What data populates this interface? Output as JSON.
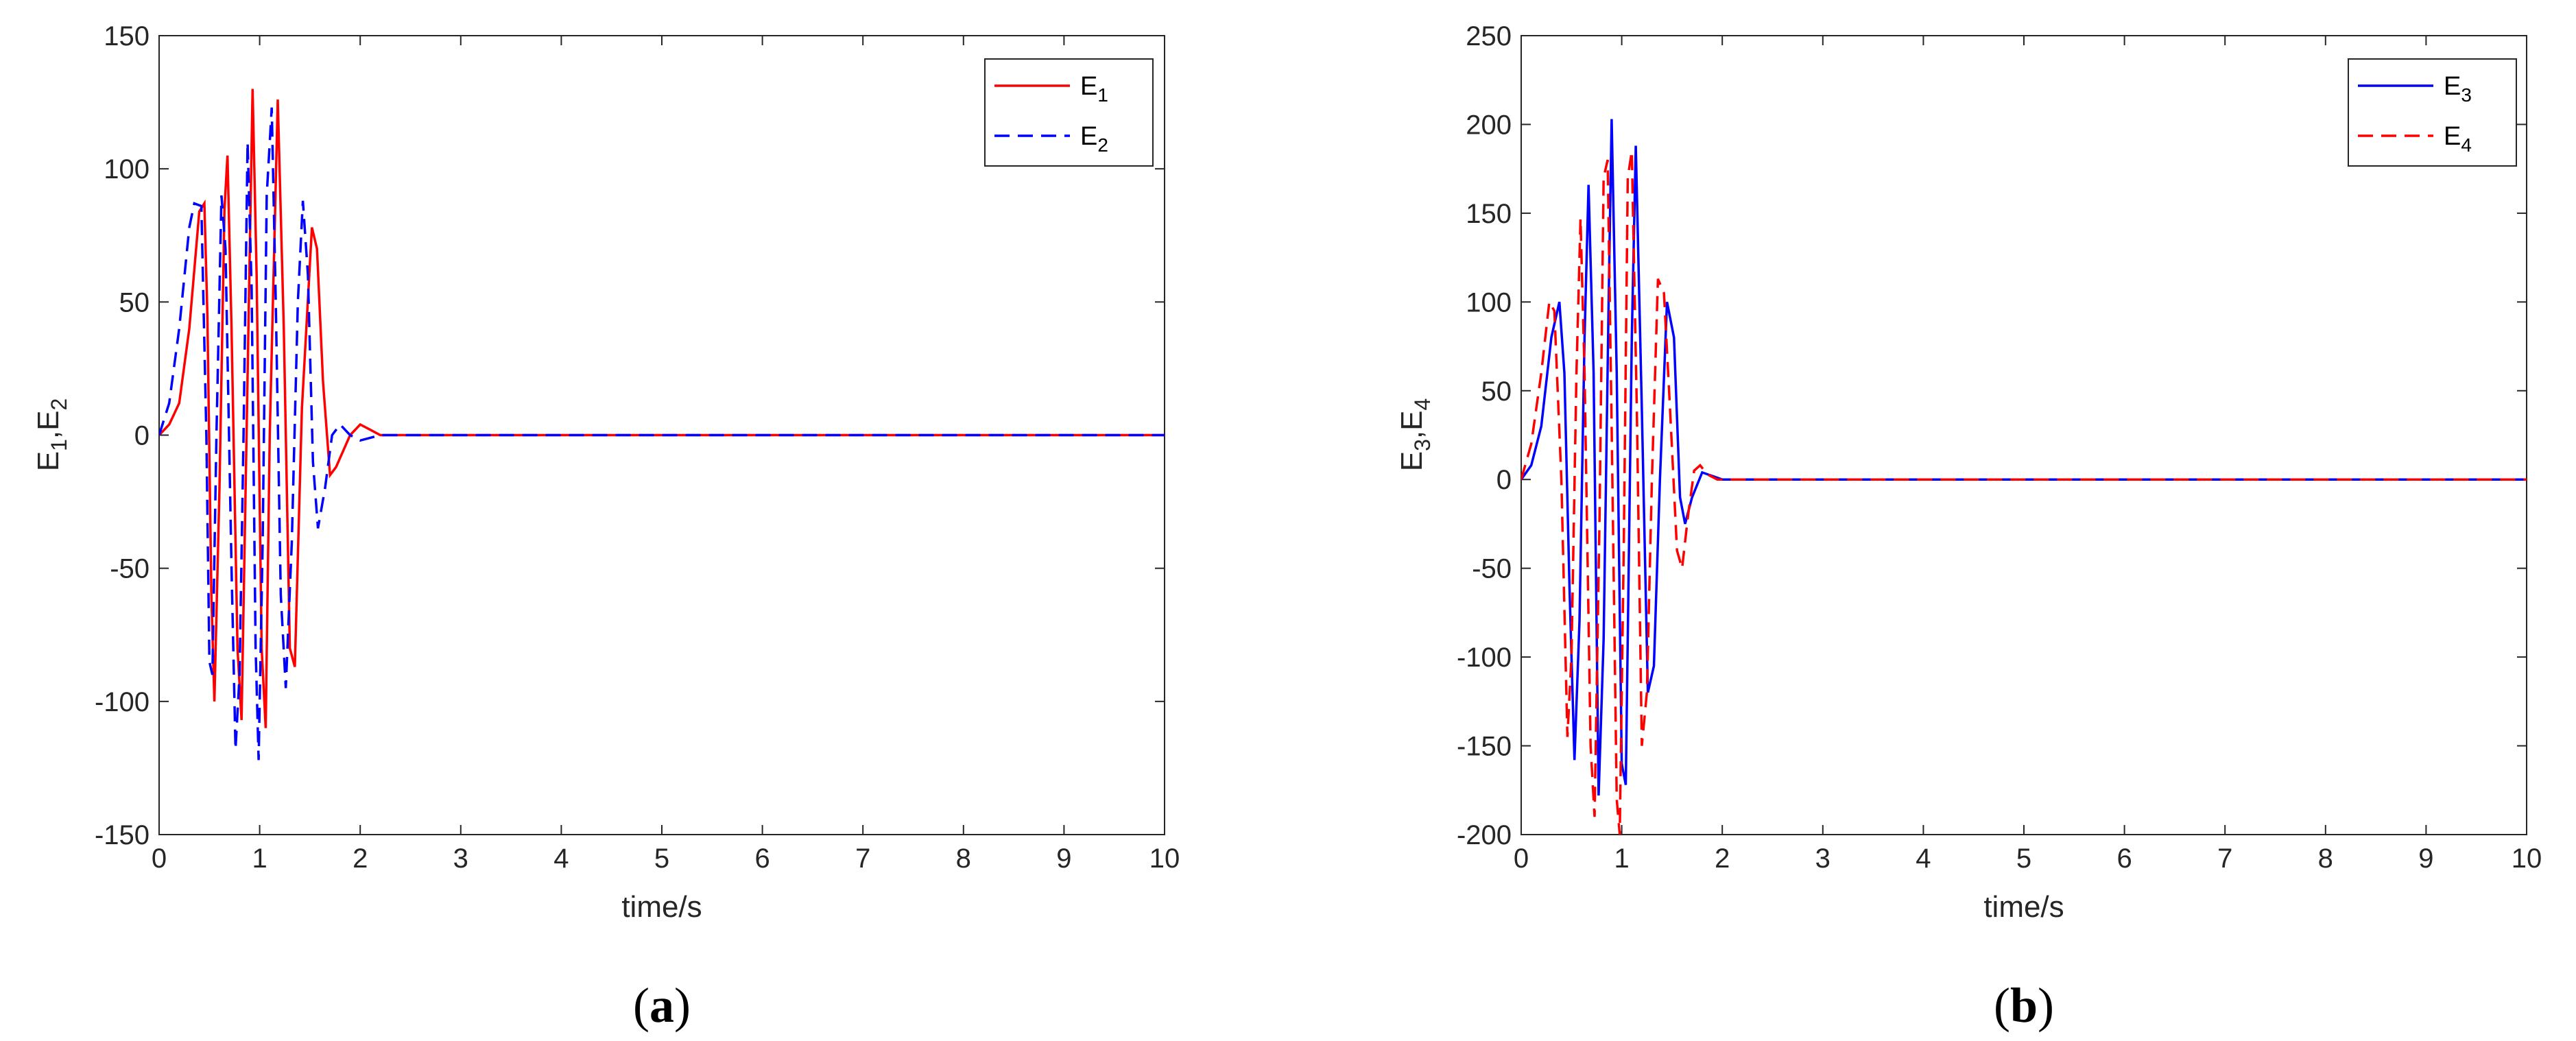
{
  "figure": {
    "panel_labels": [
      "a",
      "b"
    ]
  },
  "chart_data": [
    {
      "type": "line",
      "panel": "a",
      "xlabel": "time/s",
      "ylabel": "E1,E2",
      "xlim": [
        0,
        10
      ],
      "ylim": [
        -150,
        150
      ],
      "xticks": [
        0,
        1,
        2,
        3,
        4,
        5,
        6,
        7,
        8,
        9,
        10
      ],
      "yticks": [
        -150,
        -100,
        -50,
        0,
        50,
        100,
        150
      ],
      "grid": false,
      "legend_position": "top-right",
      "series": [
        {
          "name": "E1",
          "style": "solid",
          "color": "#ff0000",
          "points": [
            [
              0,
              0
            ],
            [
              0.1,
              4
            ],
            [
              0.2,
              12
            ],
            [
              0.3,
              40
            ],
            [
              0.4,
              84
            ],
            [
              0.45,
              87
            ],
            [
              0.48,
              45
            ],
            [
              0.52,
              -60
            ],
            [
              0.55,
              -100
            ],
            [
              0.6,
              -20
            ],
            [
              0.65,
              85
            ],
            [
              0.68,
              105
            ],
            [
              0.72,
              40
            ],
            [
              0.78,
              -80
            ],
            [
              0.82,
              -107
            ],
            [
              0.87,
              0
            ],
            [
              0.93,
              130
            ],
            [
              0.97,
              60
            ],
            [
              1.02,
              -80
            ],
            [
              1.06,
              -110
            ],
            [
              1.1,
              0
            ],
            [
              1.18,
              126
            ],
            [
              1.24,
              40
            ],
            [
              1.3,
              -80
            ],
            [
              1.35,
              -87
            ],
            [
              1.42,
              10
            ],
            [
              1.52,
              78
            ],
            [
              1.57,
              70
            ],
            [
              1.63,
              20
            ],
            [
              1.7,
              -15
            ],
            [
              1.76,
              -12
            ],
            [
              1.9,
              0
            ],
            [
              2.0,
              4
            ],
            [
              2.1,
              2
            ],
            [
              2.2,
              0
            ],
            [
              2.4,
              0
            ],
            [
              3,
              0
            ],
            [
              10,
              0
            ]
          ]
        },
        {
          "name": "E2",
          "style": "dashed",
          "color": "#0000ff",
          "points": [
            [
              0,
              0
            ],
            [
              0.1,
              12
            ],
            [
              0.2,
              40
            ],
            [
              0.3,
              78
            ],
            [
              0.35,
              87
            ],
            [
              0.42,
              86
            ],
            [
              0.47,
              0
            ],
            [
              0.5,
              -85
            ],
            [
              0.53,
              -90
            ],
            [
              0.57,
              0
            ],
            [
              0.62,
              90
            ],
            [
              0.66,
              70
            ],
            [
              0.72,
              -50
            ],
            [
              0.76,
              -118
            ],
            [
              0.8,
              -90
            ],
            [
              0.84,
              0
            ],
            [
              0.88,
              110
            ],
            [
              0.92,
              55
            ],
            [
              0.96,
              -80
            ],
            [
              0.99,
              -122
            ],
            [
              1.03,
              -40
            ],
            [
              1.07,
              90
            ],
            [
              1.12,
              123
            ],
            [
              1.16,
              50
            ],
            [
              1.21,
              -60
            ],
            [
              1.26,
              -95
            ],
            [
              1.32,
              -40
            ],
            [
              1.38,
              50
            ],
            [
              1.43,
              88
            ],
            [
              1.48,
              60
            ],
            [
              1.53,
              -10
            ],
            [
              1.58,
              -35
            ],
            [
              1.65,
              -20
            ],
            [
              1.72,
              0
            ],
            [
              1.8,
              4
            ],
            [
              1.9,
              0
            ],
            [
              2.0,
              -2
            ],
            [
              2.2,
              0
            ],
            [
              2.5,
              0
            ],
            [
              10,
              0
            ]
          ]
        }
      ]
    },
    {
      "type": "line",
      "panel": "b",
      "xlabel": "time/s",
      "ylabel": "E3,E4",
      "xlim": [
        0,
        10
      ],
      "ylim": [
        -200,
        250
      ],
      "xticks": [
        0,
        1,
        2,
        3,
        4,
        5,
        6,
        7,
        8,
        9,
        10
      ],
      "yticks": [
        -200,
        -150,
        -100,
        -50,
        0,
        50,
        100,
        150,
        200,
        250
      ],
      "grid": false,
      "legend_position": "top-right",
      "series": [
        {
          "name": "E3",
          "style": "solid",
          "color": "#0000ff",
          "points": [
            [
              0,
              0
            ],
            [
              0.1,
              8
            ],
            [
              0.2,
              30
            ],
            [
              0.3,
              80
            ],
            [
              0.38,
              100
            ],
            [
              0.43,
              60
            ],
            [
              0.48,
              -60
            ],
            [
              0.53,
              -158
            ],
            [
              0.58,
              -80
            ],
            [
              0.63,
              80
            ],
            [
              0.67,
              166
            ],
            [
              0.72,
              60
            ],
            [
              0.77,
              -178
            ],
            [
              0.82,
              -90
            ],
            [
              0.87,
              100
            ],
            [
              0.9,
              203
            ],
            [
              0.95,
              60
            ],
            [
              1.0,
              -160
            ],
            [
              1.04,
              -172
            ],
            [
              1.1,
              80
            ],
            [
              1.14,
              188
            ],
            [
              1.2,
              40
            ],
            [
              1.26,
              -120
            ],
            [
              1.32,
              -105
            ],
            [
              1.38,
              0
            ],
            [
              1.45,
              100
            ],
            [
              1.52,
              80
            ],
            [
              1.58,
              -10
            ],
            [
              1.63,
              -25
            ],
            [
              1.7,
              -10
            ],
            [
              1.8,
              4
            ],
            [
              1.9,
              2
            ],
            [
              2.0,
              0
            ],
            [
              2.2,
              0
            ],
            [
              10,
              0
            ]
          ]
        },
        {
          "name": "E4",
          "style": "dashed",
          "color": "#ff0000",
          "points": [
            [
              0,
              0
            ],
            [
              0.1,
              20
            ],
            [
              0.2,
              60
            ],
            [
              0.28,
              100
            ],
            [
              0.33,
              95
            ],
            [
              0.4,
              0
            ],
            [
              0.46,
              -145
            ],
            [
              0.5,
              -100
            ],
            [
              0.55,
              60
            ],
            [
              0.59,
              147
            ],
            [
              0.63,
              60
            ],
            [
              0.69,
              -150
            ],
            [
              0.73,
              -190
            ],
            [
              0.78,
              -20
            ],
            [
              0.82,
              170
            ],
            [
              0.86,
              180
            ],
            [
              0.9,
              30
            ],
            [
              0.95,
              -180
            ],
            [
              0.98,
              -200
            ],
            [
              1.02,
              -40
            ],
            [
              1.06,
              170
            ],
            [
              1.1,
              185
            ],
            [
              1.15,
              40
            ],
            [
              1.2,
              -150
            ],
            [
              1.25,
              -120
            ],
            [
              1.3,
              0
            ],
            [
              1.36,
              113
            ],
            [
              1.42,
              105
            ],
            [
              1.48,
              40
            ],
            [
              1.55,
              -40
            ],
            [
              1.6,
              -50
            ],
            [
              1.66,
              -20
            ],
            [
              1.72,
              5
            ],
            [
              1.78,
              8
            ],
            [
              1.85,
              3
            ],
            [
              1.95,
              0
            ],
            [
              2.1,
              0
            ],
            [
              2.3,
              0
            ],
            [
              10,
              0
            ]
          ]
        }
      ]
    }
  ]
}
